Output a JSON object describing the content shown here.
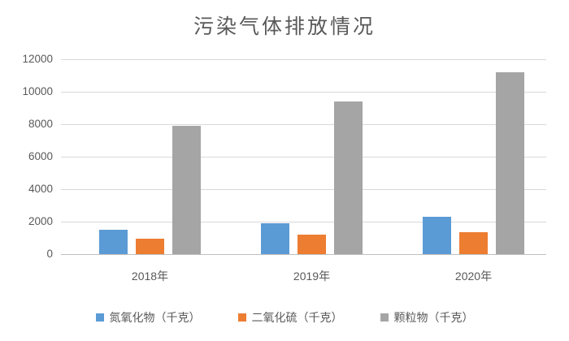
{
  "chart_data": {
    "type": "bar",
    "title": "污染气体排放情况",
    "categories": [
      "2018年",
      "2019年",
      "2020年"
    ],
    "series": [
      {
        "name": "氮氧化物（千克）",
        "color": "#5B9BD5",
        "values": [
          1500,
          1900,
          2300
        ]
      },
      {
        "name": "二氧化硫（千克）",
        "color": "#ED7D31",
        "values": [
          950,
          1200,
          1350
        ]
      },
      {
        "name": "颗粒物（千克）",
        "color": "#A5A5A5",
        "values": [
          7900,
          9400,
          11200
        ]
      }
    ],
    "xlabel": "",
    "ylabel": "",
    "ylim": [
      0,
      12000
    ],
    "yticks": [
      0,
      2000,
      4000,
      6000,
      8000,
      10000,
      12000
    ],
    "grid": true,
    "legend_position": "bottom"
  },
  "style": {
    "background": "#FFFFFF",
    "title_color": "#595959",
    "axis_text_color": "#595959",
    "gridline_color": "#D9D9D9",
    "axis_line_color": "#BFBFBF"
  }
}
